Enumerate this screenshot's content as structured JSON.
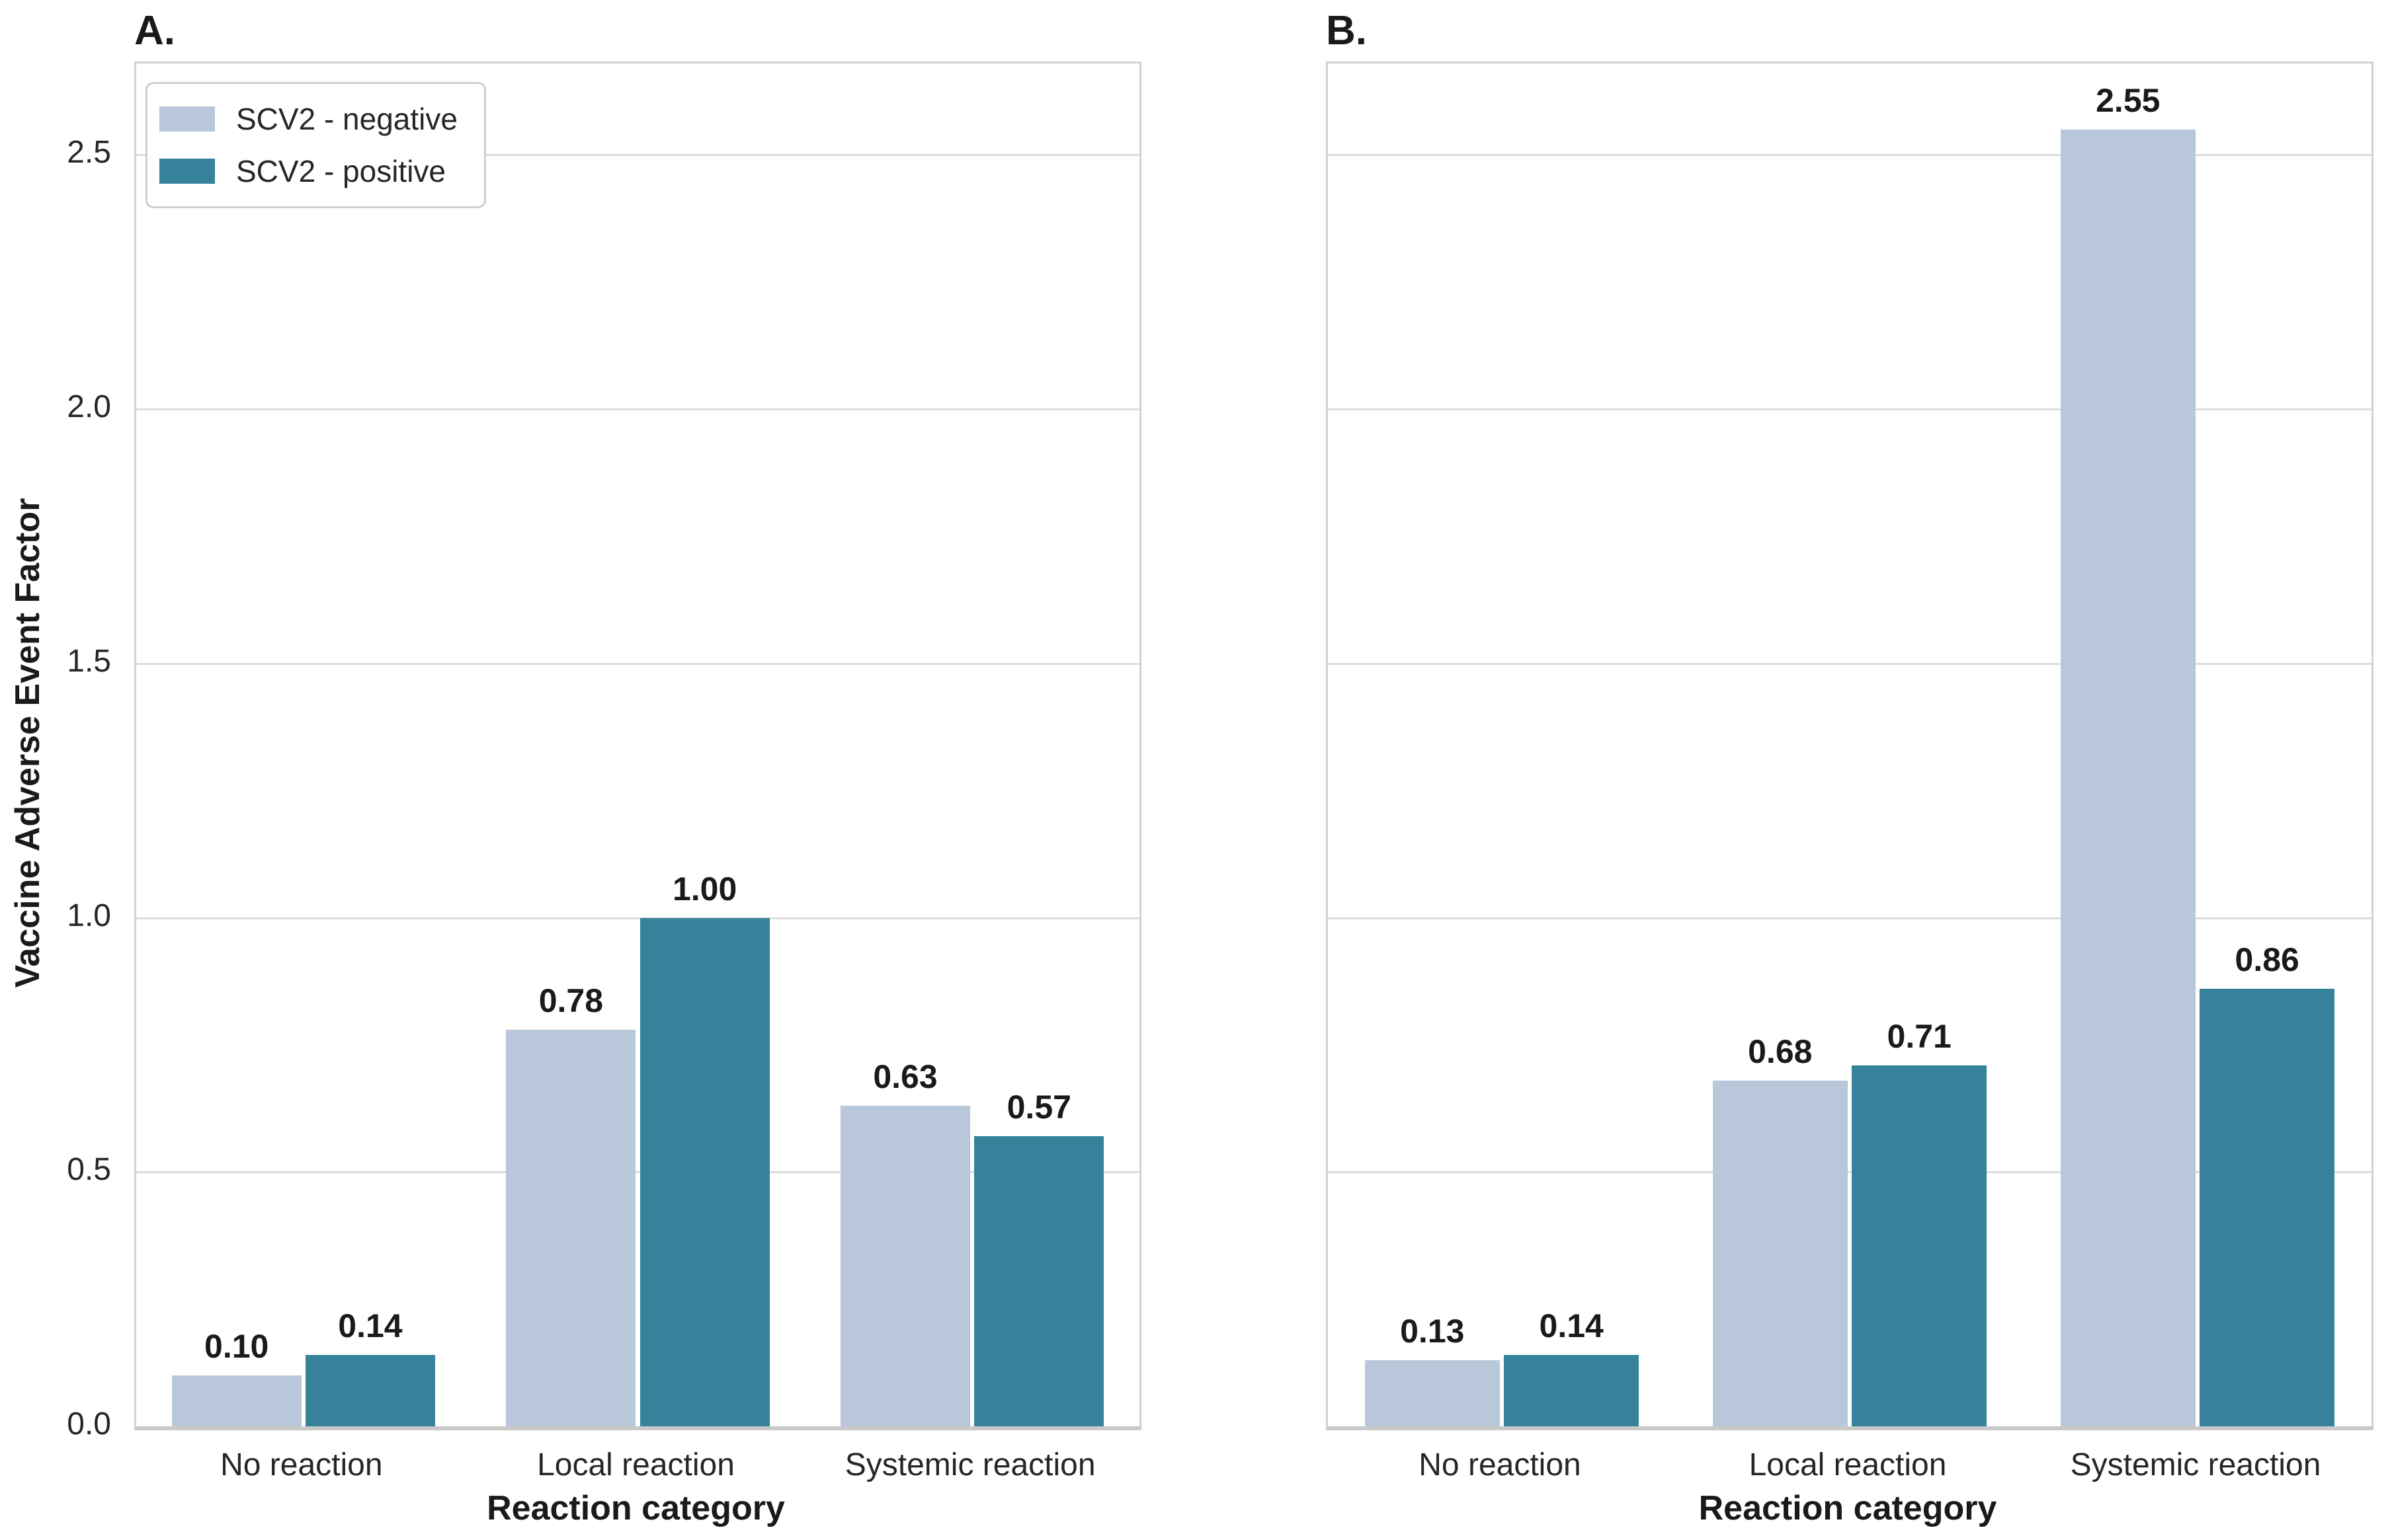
{
  "figure": {
    "background": "#ffffff",
    "panels": [
      {
        "letter": "A."
      },
      {
        "letter": "B."
      }
    ]
  },
  "legend": {
    "position": "upper-left",
    "items": [
      "SCV2 - negative",
      "SCV2 - positive"
    ]
  },
  "colors": {
    "scv2_negative": "#b8c7d9",
    "scv2_positive": "#36829b",
    "gridline": "#dcdcdc",
    "text": "#262626"
  },
  "chart_data": [
    {
      "type": "bar",
      "panel": "A.",
      "categories": [
        "No reaction",
        "Local reaction",
        "Systemic reaction"
      ],
      "series": [
        {
          "name": "SCV2 - negative",
          "color": "#b8c7d9",
          "values": [
            0.1,
            0.78,
            0.63
          ]
        },
        {
          "name": "SCV2 - positive",
          "color": "#36829b",
          "values": [
            0.14,
            1.0,
            0.57
          ]
        }
      ],
      "xlabel": "Reaction category",
      "ylabel": "Vaccine Adverse Event Factor",
      "ylim": [
        0,
        2.68
      ],
      "yticks": [
        0.0,
        0.5,
        1.0,
        1.5,
        2.0,
        2.5
      ],
      "grid": "horizontal",
      "legend_visible": true
    },
    {
      "type": "bar",
      "panel": "B.",
      "categories": [
        "No reaction",
        "Local reaction",
        "Systemic reaction"
      ],
      "series": [
        {
          "name": "SCV2 - negative",
          "color": "#b8c7d9",
          "values": [
            0.13,
            0.68,
            2.55
          ]
        },
        {
          "name": "SCV2 - positive",
          "color": "#36829b",
          "values": [
            0.14,
            0.71,
            0.86
          ]
        }
      ],
      "xlabel": "Reaction category",
      "ylabel": "",
      "ylim": [
        0,
        2.68
      ],
      "yticks": [
        0.0,
        0.5,
        1.0,
        1.5,
        2.0,
        2.5
      ],
      "grid": "horizontal",
      "legend_visible": false
    }
  ]
}
